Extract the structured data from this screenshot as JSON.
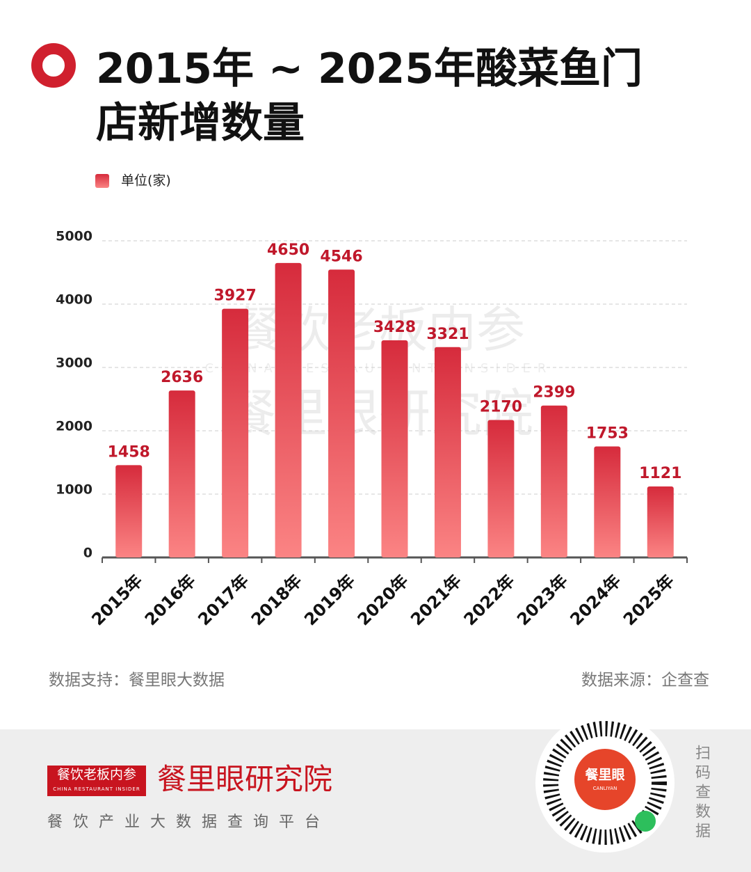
{
  "chart_data": {
    "type": "bar",
    "title": "2015年 ~ 2025年酸菜鱼门店新增数量",
    "unit_label": "单位(家)",
    "categories": [
      "2015年",
      "2016年",
      "2017年",
      "2018年",
      "2019年",
      "2020年",
      "2021年",
      "2022年",
      "2023年",
      "2024年",
      "2025年"
    ],
    "values": [
      1458,
      2636,
      3927,
      4650,
      4546,
      3428,
      3321,
      2170,
      2399,
      1753,
      1121
    ],
    "color": "#d62b3c",
    "ylim": [
      0,
      5000
    ],
    "yticks": [
      0,
      1000,
      2000,
      3000,
      4000,
      5000
    ],
    "grid": true
  },
  "watermark": {
    "line1": "餐饮老板内参",
    "line2": "CHINA RESTAURANT INSIDER",
    "line3": "餐里眼研究院"
  },
  "notes": {
    "support": "数据支持：餐里眼大数据",
    "source": "数据来源：企查查"
  },
  "footer": {
    "logo": "餐饮老板内参",
    "logo_sub": "CHINA RESTAURANT INSIDER",
    "brand": "餐里眼研究院",
    "tagline": "餐饮产业大数据查询平台",
    "qr_name": "餐里眼",
    "qr_sub": "CANLIYAN",
    "scan": "扫码查数据"
  }
}
